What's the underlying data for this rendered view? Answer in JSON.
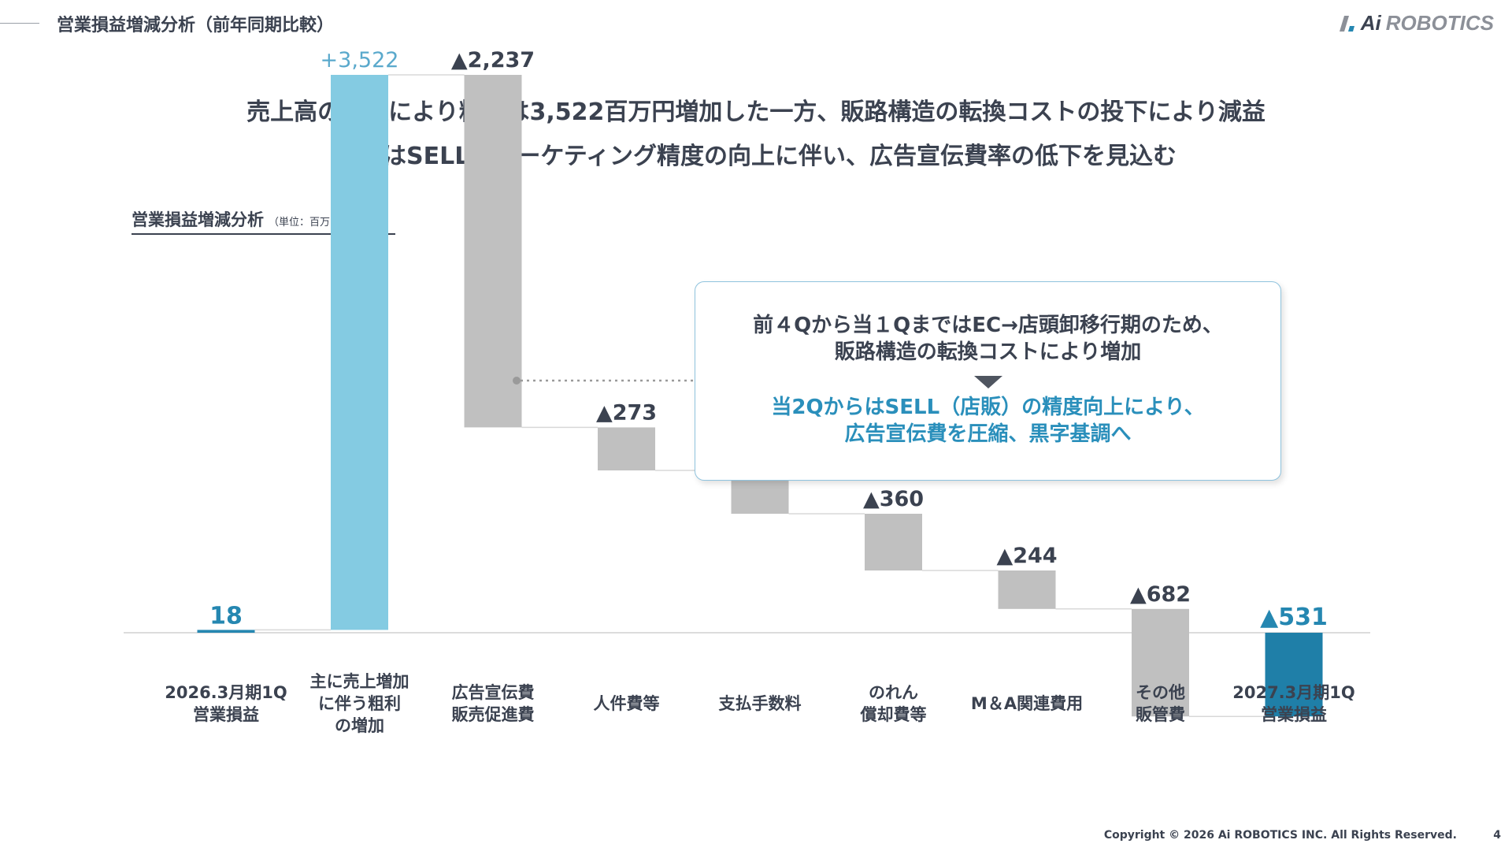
{
  "header": {
    "title": "営業損益増減分析（前年同期比較）",
    "logo_text_ai": "Ai",
    "logo_text_rest": "ROBOTICS",
    "logo_icon": "slash-mark-icon"
  },
  "headline": {
    "line1": "売上高の伸長により粗利は3,522百万円増加した一方、販路構造の転換コストの投下により減益",
    "line2": "今後はSELLのマーケティング精度の向上に伴い、広告宣伝費率の低下を見込む"
  },
  "subtitle": {
    "label": "営業損益増減分析",
    "unit": "（単位：百万円）"
  },
  "note": {
    "line1": "前４Qから当１QまではEC→店頭卸移行期のため、",
    "line2": "販路構造の転換コストにより増加",
    "line3": "当2QからはSELL（店販）の精度向上により、",
    "line4": "広告宣伝費を圧縮、黒字基調へ",
    "arrow_icon": "triangle-down-icon"
  },
  "footer": {
    "copyright": "Copyright © 2026 Ai ROBOTICS INC. All Rights Reserved.",
    "page": "4"
  },
  "chart_data": {
    "type": "waterfall",
    "title": "営業損益増減分析",
    "unit": "（単位：百万円）",
    "colors": {
      "start": "#2587b1",
      "increase": "#84cbe2",
      "decrease": "#c0c0c0",
      "end": "#1f7fa8",
      "label_increase": "#5aa9cc",
      "label_end": "#2587b1",
      "label_default": "#3b4250"
    },
    "items": [
      {
        "label": [
          "2026.3月期1Q",
          "営業損益"
        ],
        "value": 18,
        "kind": "start",
        "display": "18"
      },
      {
        "label": [
          "主に売上増加",
          "に伴う粗利",
          "の増加"
        ],
        "value": 3522,
        "kind": "increase",
        "display": "+3,522"
      },
      {
        "label": [
          "広告宣伝費",
          "販売促進費"
        ],
        "value": -2237,
        "kind": "decrease",
        "display": "▲2,237"
      },
      {
        "label": [
          "人件費等"
        ],
        "value": -273,
        "kind": "decrease",
        "display": "▲273"
      },
      {
        "label": [
          "支払手数料"
        ],
        "value": -275,
        "kind": "decrease",
        "display": "▲275"
      },
      {
        "label": [
          "のれん",
          "償却費等"
        ],
        "value": -360,
        "kind": "decrease",
        "display": "▲360"
      },
      {
        "label": [
          "M＆A関連費用"
        ],
        "value": -244,
        "kind": "decrease",
        "display": "▲244"
      },
      {
        "label": [
          "その他",
          "販管費"
        ],
        "value": -682,
        "kind": "decrease",
        "display": "▲682"
      },
      {
        "label": [
          "2027.3月期1Q",
          "営業損益"
        ],
        "value": -531,
        "kind": "end",
        "display": "▲531"
      }
    ]
  }
}
